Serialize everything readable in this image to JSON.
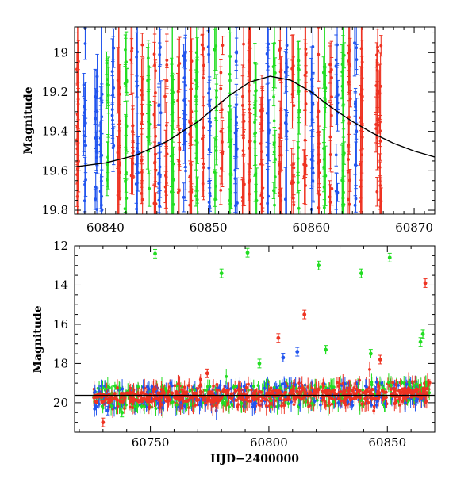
{
  "chart_data": [
    {
      "type": "scatter",
      "title": "",
      "xlabel": "",
      "ylabel": "Magnitude",
      "xlim": [
        60837,
        60872
      ],
      "ylim": [
        19.82,
        18.87
      ],
      "y_inverted": true,
      "xticks": [
        60840,
        60850,
        60860,
        60870
      ],
      "xtick_labels": [
        "60840",
        "60850",
        "60860",
        "60870"
      ],
      "yticks": [
        19.0,
        19.2,
        19.4,
        19.6,
        19.8
      ],
      "ytick_labels": [
        "19",
        "19.2",
        "19.4",
        "19.6",
        "19.8"
      ],
      "grid": false,
      "legend": "none",
      "series_colors": [
        "#22dd22",
        "#2255ee",
        "#ee3322"
      ],
      "model_curve": {
        "color": "#000000",
        "x": [
          60837,
          60840,
          60843,
          60846,
          60849,
          60852,
          60854,
          60856,
          60858,
          60860,
          60862,
          60864,
          60866,
          60868,
          60870,
          60872
        ],
        "y": [
          19.58,
          19.56,
          19.52,
          19.45,
          19.35,
          19.22,
          19.15,
          19.12,
          19.14,
          19.2,
          19.28,
          19.35,
          19.41,
          19.46,
          19.5,
          19.53
        ]
      },
      "clusters": [
        {
          "x": 60837.3,
          "color": "#ee3322"
        },
        {
          "x": 60838.0,
          "color": "#2255ee"
        },
        {
          "x": 60839.1,
          "color": "#2255ee"
        },
        {
          "x": 60839.6,
          "color": "#2255ee"
        },
        {
          "x": 60840.2,
          "color": "#22dd22"
        },
        {
          "x": 60840.7,
          "color": "#2255ee"
        },
        {
          "x": 60841.3,
          "color": "#ee3322"
        },
        {
          "x": 60842.0,
          "color": "#22dd22"
        },
        {
          "x": 60842.6,
          "color": "#ee3322"
        },
        {
          "x": 60843.1,
          "color": "#2255ee"
        },
        {
          "x": 60843.6,
          "color": "#ee3322"
        },
        {
          "x": 60844.2,
          "color": "#22dd22"
        },
        {
          "x": 60844.8,
          "color": "#ee3322"
        },
        {
          "x": 60845.3,
          "color": "#2255ee"
        },
        {
          "x": 60845.9,
          "color": "#ee3322"
        },
        {
          "x": 60846.5,
          "color": "#22dd22"
        },
        {
          "x": 60847.1,
          "color": "#ee3322"
        },
        {
          "x": 60847.7,
          "color": "#2255ee"
        },
        {
          "x": 60848.3,
          "color": "#ee3322"
        },
        {
          "x": 60848.9,
          "color": "#22dd22"
        },
        {
          "x": 60849.5,
          "color": "#ee3322"
        },
        {
          "x": 60850.1,
          "color": "#2255ee"
        },
        {
          "x": 60850.7,
          "color": "#22dd22"
        },
        {
          "x": 60851.3,
          "color": "#ee3322"
        },
        {
          "x": 60852.1,
          "color": "#22dd22"
        },
        {
          "x": 60852.7,
          "color": "#2255ee"
        },
        {
          "x": 60853.4,
          "color": "#ee3322"
        },
        {
          "x": 60854.0,
          "color": "#ee3322"
        },
        {
          "x": 60854.6,
          "color": "#22dd22"
        },
        {
          "x": 60855.2,
          "color": "#ee3322"
        },
        {
          "x": 60855.8,
          "color": "#2255ee"
        },
        {
          "x": 60856.4,
          "color": "#22dd22"
        },
        {
          "x": 60857.0,
          "color": "#ee3322"
        },
        {
          "x": 60857.6,
          "color": "#2255ee"
        },
        {
          "x": 60858.2,
          "color": "#ee3322"
        },
        {
          "x": 60858.8,
          "color": "#22dd22"
        },
        {
          "x": 60859.4,
          "color": "#ee3322"
        },
        {
          "x": 60860.1,
          "color": "#2255ee"
        },
        {
          "x": 60860.7,
          "color": "#ee3322"
        },
        {
          "x": 60861.3,
          "color": "#22dd22"
        },
        {
          "x": 60861.9,
          "color": "#ee3322"
        },
        {
          "x": 60862.5,
          "color": "#2255ee"
        },
        {
          "x": 60863.1,
          "color": "#22dd22"
        },
        {
          "x": 60863.7,
          "color": "#ee3322"
        },
        {
          "x": 60864.3,
          "color": "#2255ee"
        },
        {
          "x": 60864.9,
          "color": "#ee3322"
        },
        {
          "x": 60866.4,
          "color": "#ee3322"
        },
        {
          "x": 60866.7,
          "color": "#ee3322"
        }
      ]
    },
    {
      "type": "scatter",
      "title": "",
      "xlabel": "HJD−2400000",
      "ylabel": "Magnitude",
      "xlim": [
        60718,
        60870
      ],
      "ylim": [
        21.5,
        12.0
      ],
      "y_inverted": true,
      "xticks": [
        60750,
        60800,
        60850
      ],
      "xtick_labels": [
        "60750",
        "60800",
        "60850"
      ],
      "yticks": [
        12,
        14,
        16,
        18,
        20
      ],
      "ytick_labels": [
        "12",
        "14",
        "16",
        "18",
        "20"
      ],
      "grid": false,
      "legend": "none",
      "series_colors": [
        "#22dd22",
        "#2255ee",
        "#ee3322"
      ],
      "baseline": {
        "x_start": 60726,
        "x_end": 60868,
        "mag_start": 19.75,
        "mag_end": 19.5
      },
      "outliers": [
        {
          "x": 60752,
          "y": 12.4,
          "color": "#22dd22"
        },
        {
          "x": 60780,
          "y": 13.4,
          "color": "#22dd22"
        },
        {
          "x": 60791,
          "y": 12.35,
          "color": "#22dd22"
        },
        {
          "x": 60821,
          "y": 13.0,
          "color": "#22dd22"
        },
        {
          "x": 60839,
          "y": 13.4,
          "color": "#22dd22"
        },
        {
          "x": 60851,
          "y": 12.6,
          "color": "#22dd22"
        },
        {
          "x": 60866,
          "y": 13.9,
          "color": "#ee3322"
        },
        {
          "x": 60815,
          "y": 15.5,
          "color": "#ee3322"
        },
        {
          "x": 60804,
          "y": 16.7,
          "color": "#ee3322"
        },
        {
          "x": 60824,
          "y": 17.3,
          "color": "#22dd22"
        },
        {
          "x": 60806,
          "y": 17.7,
          "color": "#2255ee"
        },
        {
          "x": 60812,
          "y": 17.4,
          "color": "#2255ee"
        },
        {
          "x": 60843,
          "y": 17.5,
          "color": "#22dd22"
        },
        {
          "x": 60847,
          "y": 17.8,
          "color": "#ee3322"
        },
        {
          "x": 60864,
          "y": 16.9,
          "color": "#22dd22"
        },
        {
          "x": 60865,
          "y": 16.5,
          "color": "#22dd22"
        },
        {
          "x": 60796,
          "y": 18.0,
          "color": "#22dd22"
        },
        {
          "x": 60774,
          "y": 18.5,
          "color": "#ee3322"
        },
        {
          "x": 60738,
          "y": 20.5,
          "color": "#22dd22"
        },
        {
          "x": 60730,
          "y": 21.0,
          "color": "#ee3322"
        },
        {
          "x": 60732,
          "y": 20.4,
          "color": "#2255ee"
        }
      ]
    }
  ]
}
